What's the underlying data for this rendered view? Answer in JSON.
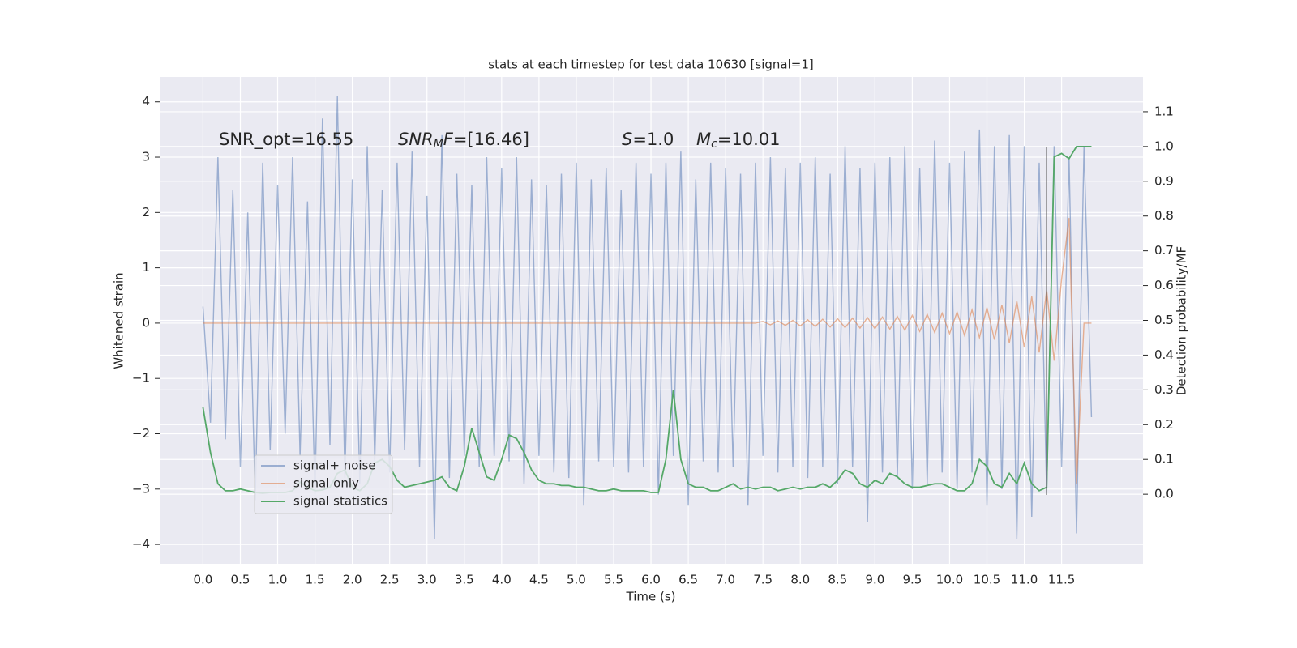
{
  "chart_data": {
    "type": "line",
    "title": "stats at each timestep for test data 10630 [signal=1]",
    "xlabel": "Time (s)",
    "ylabel": "Whitened strain",
    "y2label": "Detection probability/MF",
    "background": "#eaeaf2",
    "grid": true,
    "legend": "lower left",
    "xlim": [
      -0.58,
      12.59
    ],
    "ylim": [
      -4.35,
      4.45
    ],
    "y2lim": [
      -0.2,
      1.2
    ],
    "xticks": [
      {
        "value": 0,
        "label": "0.0"
      },
      0.5,
      {
        "value": 1,
        "label": "1.0"
      },
      1.5,
      {
        "value": 2,
        "label": "2.0"
      },
      2.5,
      {
        "value": 3,
        "label": "3.0"
      },
      3.5,
      {
        "value": 4,
        "label": "4.0"
      },
      4.5,
      {
        "value": 5,
        "label": "5.0"
      },
      5.5,
      {
        "value": 6,
        "label": "6.0"
      },
      6.5,
      {
        "value": 7,
        "label": "7.0"
      },
      7.5,
      {
        "value": 8,
        "label": "8.0"
      },
      8.5,
      {
        "value": 9,
        "label": "9.0"
      },
      9.5,
      {
        "value": 10,
        "label": "10.0"
      },
      10.5,
      {
        "value": 11,
        "label": "11.0"
      },
      11.5
    ],
    "yticks": [
      {
        "value": -4,
        "label": "−4"
      },
      {
        "value": -3,
        "label": "−3"
      },
      {
        "value": -2,
        "label": "−2"
      },
      {
        "value": -1,
        "label": "−1"
      },
      0,
      1,
      2,
      3,
      4
    ],
    "y2ticks": [
      {
        "value": 0,
        "label": "0.0"
      },
      0.1,
      0.2,
      0.3,
      0.4,
      0.5,
      0.6,
      0.7,
      0.8,
      0.9,
      {
        "value": 1,
        "label": "1.0"
      },
      1.1
    ],
    "annotations": [
      [
        {
          "text": "SNR_opt=16.55",
          "style": "normal"
        }
      ],
      [
        {
          "text": "SNR",
          "style": "italic"
        },
        {
          "text": "M",
          "style": "sub"
        },
        {
          "text": "F",
          "style": "italic"
        },
        {
          "text": "=[16.46]",
          "style": "normal"
        }
      ],
      [
        {
          "text": "S",
          "style": "italic"
        },
        {
          "text": "=1.0",
          "style": "normal"
        }
      ],
      [
        {
          "text": "M",
          "style": "italic"
        },
        {
          "text": "c",
          "style": "sub"
        },
        {
          "text": "=10.01",
          "style": "normal"
        }
      ]
    ],
    "vline_x": 11.3,
    "vline_color": "#555555",
    "x": [
      0.0,
      0.1,
      0.2,
      0.3,
      0.4,
      0.5,
      0.6,
      0.7,
      0.8,
      0.9,
      1.0,
      1.1,
      1.2,
      1.3,
      1.4,
      1.5,
      1.6,
      1.7,
      1.8,
      1.9,
      2.0,
      2.1,
      2.2,
      2.3,
      2.4,
      2.5,
      2.6,
      2.7,
      2.8,
      2.9,
      3.0,
      3.1,
      3.2,
      3.3,
      3.4,
      3.5,
      3.6,
      3.7,
      3.8,
      3.9,
      4.0,
      4.1,
      4.2,
      4.3,
      4.4,
      4.5,
      4.6,
      4.7,
      4.8,
      4.9,
      5.0,
      5.1,
      5.2,
      5.3,
      5.4,
      5.5,
      5.6,
      5.7,
      5.8,
      5.9,
      6.0,
      6.1,
      6.2,
      6.3,
      6.4,
      6.5,
      6.6,
      6.7,
      6.8,
      6.9,
      7.0,
      7.1,
      7.2,
      7.3,
      7.4,
      7.5,
      7.6,
      7.7,
      7.8,
      7.9,
      8.0,
      8.1,
      8.2,
      8.3,
      8.4,
      8.5,
      8.6,
      8.7,
      8.8,
      8.9,
      9.0,
      9.1,
      9.2,
      9.3,
      9.4,
      9.5,
      9.6,
      9.7,
      9.8,
      9.9,
      10.0,
      10.1,
      10.2,
      10.3,
      10.4,
      10.5,
      10.6,
      10.7,
      10.8,
      10.9,
      11.0,
      11.1,
      11.2,
      11.3,
      11.4,
      11.5,
      11.6,
      11.7,
      11.8,
      11.9
    ],
    "series": [
      {
        "name": "signal+ noise",
        "color": "#4c72b0",
        "alpha": 0.5,
        "axis": "y",
        "values": [
          0.3,
          -1.8,
          3.0,
          -2.1,
          2.4,
          -2.6,
          2.0,
          -3.2,
          2.9,
          -2.3,
          2.5,
          -2.0,
          3.0,
          -2.4,
          2.2,
          -3.1,
          3.7,
          -2.2,
          4.1,
          -2.8,
          2.6,
          -2.9,
          3.2,
          -2.5,
          2.4,
          -2.7,
          2.9,
          -2.3,
          3.1,
          -2.6,
          2.3,
          -3.9,
          3.4,
          -2.8,
          2.7,
          -2.4,
          2.5,
          -2.6,
          3.0,
          -2.4,
          2.8,
          -2.5,
          3.0,
          -2.9,
          2.6,
          -2.4,
          2.5,
          -2.7,
          2.7,
          -2.8,
          2.9,
          -3.3,
          2.6,
          -2.5,
          2.8,
          -2.6,
          2.4,
          -2.7,
          2.9,
          -2.6,
          2.7,
          -3.1,
          2.9,
          -2.4,
          3.1,
          -3.3,
          2.6,
          -2.5,
          2.9,
          -2.7,
          2.8,
          -2.6,
          2.7,
          -3.3,
          2.9,
          -2.4,
          3.0,
          -2.7,
          2.8,
          -2.6,
          2.9,
          -2.8,
          3.0,
          -2.6,
          2.7,
          -2.9,
          3.2,
          -2.6,
          2.8,
          -3.6,
          2.9,
          -2.7,
          3.0,
          -2.8,
          3.2,
          -3.0,
          2.8,
          -2.9,
          3.3,
          -2.7,
          2.9,
          -3.0,
          3.1,
          -2.7,
          3.5,
          -3.3,
          3.2,
          -3.0,
          3.4,
          -3.9,
          3.2,
          -3.5,
          2.9,
          -3.1,
          3.2,
          -2.6,
          3.0,
          -3.8,
          3.2,
          -1.7
        ]
      },
      {
        "name": "signal only",
        "color": "#dd8452",
        "alpha": 0.6,
        "axis": "y",
        "values": [
          0,
          0,
          0,
          0,
          0,
          0,
          0,
          0,
          0,
          0,
          0,
          0,
          0,
          0,
          0,
          0,
          0,
          0,
          0,
          0,
          0,
          0,
          0,
          0,
          0,
          0,
          0,
          0,
          0,
          0,
          0,
          0,
          0,
          0,
          0,
          0,
          0,
          0,
          0,
          0,
          0,
          0,
          0,
          0,
          0,
          0,
          0,
          0,
          0,
          0,
          0,
          0,
          0,
          0,
          0,
          0,
          0,
          0,
          0,
          0,
          0,
          0,
          0,
          0,
          0,
          0,
          0,
          0,
          0,
          0,
          0,
          0,
          0,
          0,
          0,
          0.03,
          -0.03,
          0.04,
          -0.04,
          0.05,
          -0.05,
          0.06,
          -0.06,
          0.07,
          -0.07,
          0.08,
          -0.08,
          0.09,
          -0.09,
          0.1,
          -0.1,
          0.11,
          -0.11,
          0.12,
          -0.13,
          0.14,
          -0.15,
          0.16,
          -0.17,
          0.18,
          -0.19,
          0.2,
          -0.22,
          0.24,
          -0.26,
          0.28,
          -0.3,
          0.33,
          -0.36,
          0.4,
          -0.44,
          0.48,
          -0.53,
          0.6,
          -0.68,
          0.8,
          1.9,
          -2.9,
          0,
          0
        ]
      },
      {
        "name": "signal statistics",
        "color": "#55a868",
        "alpha": 1,
        "axis": "y2",
        "values": [
          0.25,
          0.12,
          0.03,
          0.01,
          0.01,
          0.015,
          0.01,
          0.005,
          0.003,
          0.005,
          0.005,
          0.005,
          0.01,
          0.035,
          0.02,
          0.01,
          0.012,
          0.02,
          0.06,
          0.07,
          0.02,
          0.01,
          0.03,
          0.09,
          0.1,
          0.08,
          0.04,
          0.02,
          0.025,
          0.03,
          0.035,
          0.04,
          0.05,
          0.02,
          0.01,
          0.08,
          0.19,
          0.12,
          0.05,
          0.04,
          0.1,
          0.17,
          0.16,
          0.12,
          0.07,
          0.04,
          0.03,
          0.03,
          0.025,
          0.025,
          0.02,
          0.02,
          0.015,
          0.01,
          0.01,
          0.015,
          0.01,
          0.01,
          0.01,
          0.01,
          0.005,
          0.005,
          0.1,
          0.3,
          0.1,
          0.03,
          0.02,
          0.02,
          0.01,
          0.01,
          0.02,
          0.03,
          0.015,
          0.02,
          0.015,
          0.02,
          0.02,
          0.01,
          0.015,
          0.02,
          0.015,
          0.02,
          0.02,
          0.03,
          0.02,
          0.04,
          0.07,
          0.06,
          0.03,
          0.02,
          0.04,
          0.03,
          0.06,
          0.05,
          0.03,
          0.02,
          0.02,
          0.025,
          0.03,
          0.03,
          0.02,
          0.01,
          0.01,
          0.03,
          0.1,
          0.08,
          0.03,
          0.02,
          0.06,
          0.03,
          0.09,
          0.03,
          0.01,
          0.02,
          0.97,
          0.98,
          0.965,
          1.0,
          1.0,
          1.0
        ]
      }
    ]
  }
}
